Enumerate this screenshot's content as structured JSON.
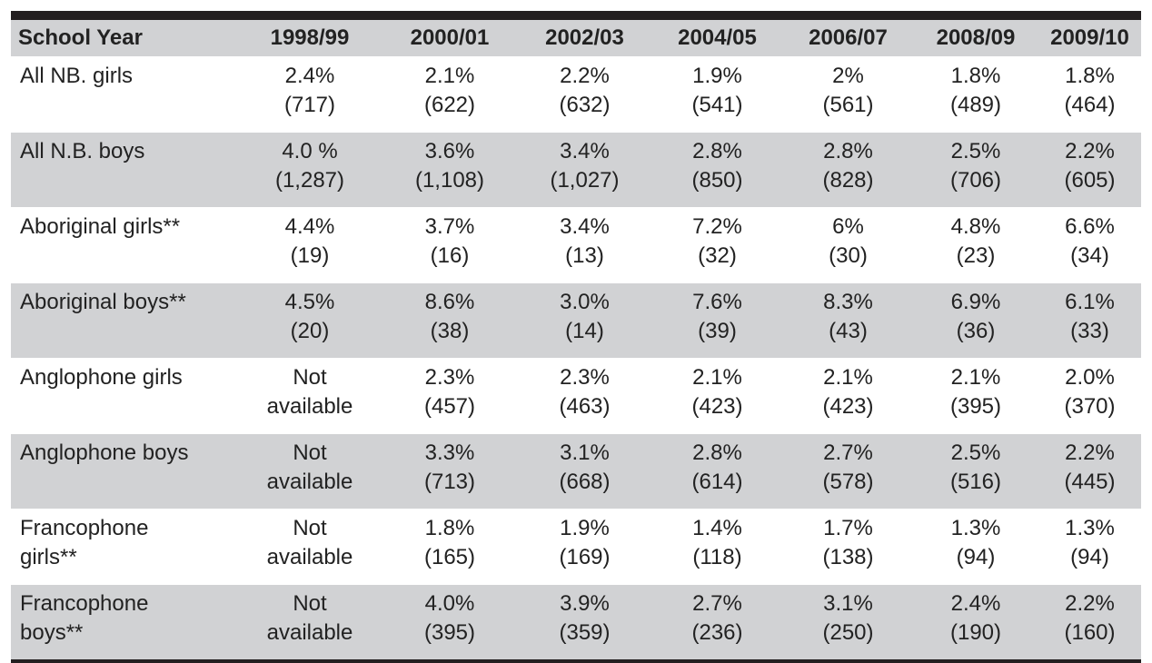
{
  "table": {
    "header": [
      "School Year",
      "1998/99",
      "2000/01",
      "2002/03",
      "2004/05",
      "2006/07",
      "2008/09",
      "2009/10"
    ],
    "rows": [
      [
        [
          "All NB. girls"
        ],
        [
          "2.4%",
          "(717)"
        ],
        [
          "2.1%",
          "(622)"
        ],
        [
          "2.2%",
          "(632)"
        ],
        [
          "1.9%",
          "(541)"
        ],
        [
          "2%",
          "(561)"
        ],
        [
          "1.8%",
          "(489)"
        ],
        [
          "1.8%",
          "(464)"
        ]
      ],
      [
        [
          "All N.B. boys"
        ],
        [
          "4.0 %",
          "(1,287)"
        ],
        [
          "3.6%",
          "(1,108)"
        ],
        [
          "3.4%",
          "(1,027)"
        ],
        [
          "2.8%",
          "(850)"
        ],
        [
          "2.8%",
          "(828)"
        ],
        [
          "2.5%",
          "(706)"
        ],
        [
          "2.2%",
          "(605)"
        ]
      ],
      [
        [
          "Aboriginal girls**"
        ],
        [
          "4.4%",
          "(19)"
        ],
        [
          "3.7%",
          "(16)"
        ],
        [
          "3.4%",
          "(13)"
        ],
        [
          "7.2%",
          "(32)"
        ],
        [
          "6%",
          "(30)"
        ],
        [
          "4.8%",
          "(23)"
        ],
        [
          "6.6%",
          "(34)"
        ]
      ],
      [
        [
          "Aboriginal boys**"
        ],
        [
          "4.5%",
          "(20)"
        ],
        [
          "8.6%",
          "(38)"
        ],
        [
          "3.0%",
          "(14)"
        ],
        [
          "7.6%",
          "(39)"
        ],
        [
          "8.3%",
          "(43)"
        ],
        [
          "6.9%",
          "(36)"
        ],
        [
          "6.1%",
          "(33)"
        ]
      ],
      [
        [
          "Anglophone girls"
        ],
        [
          "Not",
          "available"
        ],
        [
          "2.3%",
          "(457)"
        ],
        [
          "2.3%",
          "(463)"
        ],
        [
          "2.1%",
          "(423)"
        ],
        [
          "2.1%",
          "(423)"
        ],
        [
          "2.1%",
          "(395)"
        ],
        [
          "2.0%",
          "(370)"
        ]
      ],
      [
        [
          "Anglophone boys"
        ],
        [
          "Not",
          "available"
        ],
        [
          "3.3%",
          "(713)"
        ],
        [
          "3.1%",
          "(668)"
        ],
        [
          "2.8%",
          "(614)"
        ],
        [
          "2.7%",
          "(578)"
        ],
        [
          "2.5%",
          "(516)"
        ],
        [
          "2.2%",
          "(445)"
        ]
      ],
      [
        [
          "Francophone",
          "girls**"
        ],
        [
          "Not",
          "available"
        ],
        [
          "1.8%",
          "(165)"
        ],
        [
          "1.9%",
          "(169)"
        ],
        [
          "1.4%",
          "(118)"
        ],
        [
          "1.7%",
          "(138)"
        ],
        [
          "1.3%",
          "(94)"
        ],
        [
          "1.3%",
          "(94)"
        ]
      ],
      [
        [
          "Francophone",
          "boys**"
        ],
        [
          "Not",
          "available"
        ],
        [
          "4.0%",
          "(395)"
        ],
        [
          "3.9%",
          "(359)"
        ],
        [
          "2.7%",
          "(236)"
        ],
        [
          "3.1%",
          "(250)"
        ],
        [
          "2.4%",
          "(190)"
        ],
        [
          "2.2%",
          "(160)"
        ]
      ]
    ]
  }
}
